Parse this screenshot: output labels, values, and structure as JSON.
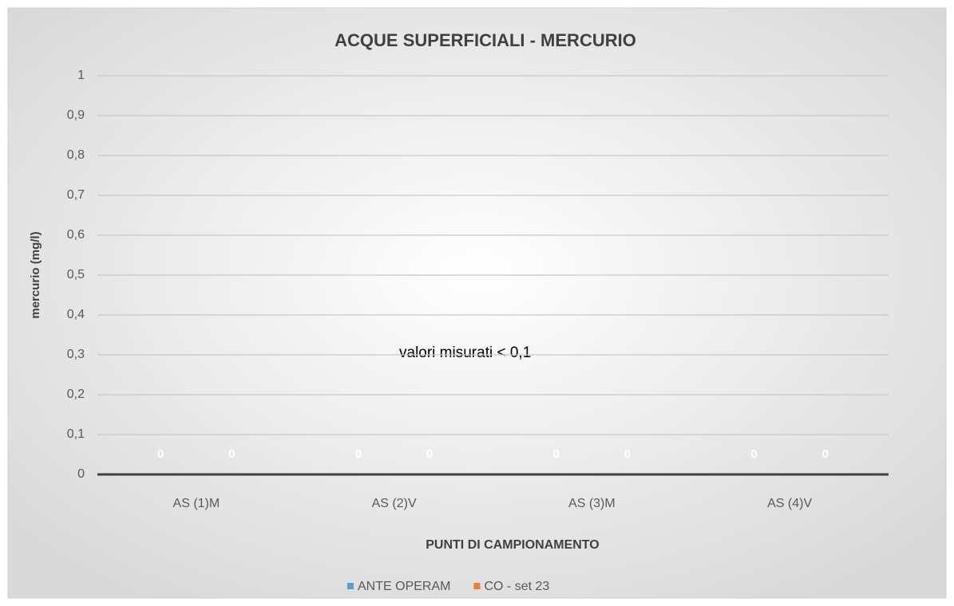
{
  "chart_data": {
    "type": "bar",
    "title": "ACQUE SUPERFICIALI - MERCURIO",
    "x_label": "PUNTI DI CAMPIONAMENTO",
    "y_label": "mercurio (mg/l)",
    "annotation": "valori misurati  < 0,1",
    "categories": [
      "AS (1)M",
      "AS (2)V",
      "AS (3)M",
      "AS (4)V"
    ],
    "series": [
      {
        "name": "ANTE OPERAM",
        "color": "#5b9bd5",
        "values": [
          0,
          0,
          0,
          0
        ]
      },
      {
        "name": "CO - set 23",
        "color": "#ed7d31",
        "values": [
          0,
          0,
          0,
          0
        ]
      }
    ],
    "ylim": [
      0,
      1
    ],
    "yticks": [
      0,
      {
        "value": 0.1,
        "label": "0,1"
      },
      {
        "value": 0.2,
        "label": "0,2"
      },
      {
        "value": 0.3,
        "label": "0,3"
      },
      {
        "value": 0.4,
        "label": "0,4"
      },
      {
        "value": 0.5,
        "label": "0,5"
      },
      {
        "value": 0.6,
        "label": "0,6"
      },
      {
        "value": 0.7,
        "label": "0,7"
      },
      {
        "value": 0.8,
        "label": "0,8"
      },
      {
        "value": 0.9,
        "label": "0,9"
      },
      1
    ],
    "grid": true,
    "legend": "bottom",
    "data_labels": true
  }
}
